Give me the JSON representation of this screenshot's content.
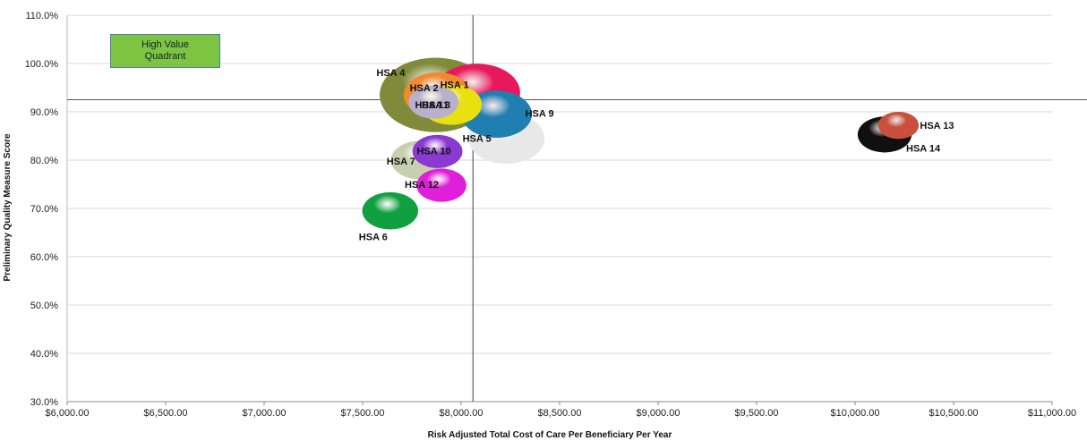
{
  "chart_data": {
    "type": "bubble",
    "xlabel": "Risk Adjusted Total Cost of Care Per Beneficiary Per Year",
    "ylabel": "Preliminary Quality Measure Score",
    "xlim": [
      6000,
      11000
    ],
    "ylim": [
      30,
      110
    ],
    "x_ticks": [
      "$6,000.00",
      "$6,500.00",
      "$7,000.00",
      "$7,500.00",
      "$8,000.00",
      "$8,500.00",
      "$9,000.00",
      "$9,500.00",
      "$10,000.00",
      "$10,500.00",
      "$11,000.00"
    ],
    "y_ticks": [
      "30.0%",
      "40.0%",
      "50.0%",
      "60.0%",
      "70.0%",
      "80.0%",
      "90.0%",
      "100.0%",
      "110.0%"
    ],
    "grid": true,
    "reference_lines": {
      "x": 8060,
      "y": 92.5
    },
    "annotation": {
      "line1": "High Value",
      "line2": "Quadrant"
    },
    "points": [
      {
        "label": "HSA 4",
        "x": 7870,
        "y": 93.5,
        "size": 3.0,
        "color": "#7f8a3a"
      },
      {
        "label": "HSA 2",
        "x": 7880,
        "y": 93.5,
        "size": 1.1,
        "color": "#f08a30"
      },
      {
        "label": "HSA 11",
        "x": 7860,
        "y": 92.0,
        "size": 0.6,
        "color": "#b9b0cc"
      },
      {
        "label": "HSA 9",
        "x": 8180,
        "y": 89.5,
        "size": 1.2,
        "color": "#1f7fb0"
      },
      {
        "label": "HSA 1",
        "x": 8080,
        "y": 94.0,
        "size": 1.8,
        "color": "#e8185c"
      },
      {
        "label": "HSA 3",
        "x": 7950,
        "y": 91.5,
        "size": 0.9,
        "color": "#e8e010"
      },
      {
        "label": "HSA 5",
        "x": 8230,
        "y": 84.5,
        "size": 1.4,
        "color": "#e8e8e8"
      },
      {
        "label": "HSA 7",
        "x": 7790,
        "y": 80.0,
        "size": 0.8,
        "color": "#c8ceb0"
      },
      {
        "label": "HSA 10",
        "x": 7880,
        "y": 81.8,
        "size": 0.6,
        "color": "#8a3ad0"
      },
      {
        "label": "HSA 12",
        "x": 7900,
        "y": 74.8,
        "size": 0.6,
        "color": "#e020d8"
      },
      {
        "label": "HSA 6",
        "x": 7640,
        "y": 69.5,
        "size": 0.75,
        "color": "#10a040"
      },
      {
        "label": "HSA 14",
        "x": 10150,
        "y": 85.3,
        "size": 0.7,
        "color": "#101010"
      },
      {
        "label": "HSA 13",
        "x": 10220,
        "y": 87.2,
        "size": 0.4,
        "color": "#c8503c"
      }
    ]
  }
}
